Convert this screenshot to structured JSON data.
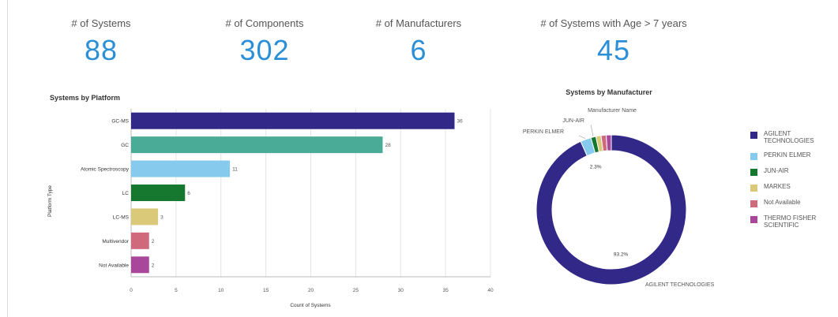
{
  "kpis": [
    {
      "label": "# of Systems",
      "value": "88"
    },
    {
      "label": "# of Components",
      "value": "302"
    },
    {
      "label": "# of Manufacturers",
      "value": "6"
    },
    {
      "label": "# of Systems with Age > 7 years",
      "value": "45"
    }
  ],
  "colors": {
    "kpi": "#2b8fd8"
  },
  "chart_data": [
    {
      "type": "bar",
      "orientation": "horizontal",
      "title": "Systems by Platform",
      "xlabel": "Count of Systems",
      "ylabel": "Platform Type",
      "categories": [
        "GC-MS",
        "GC",
        "Atomic Spectroscopy",
        "LC",
        "LC-MS",
        "Multivendor",
        "Not Available"
      ],
      "values": [
        36,
        28,
        11,
        6,
        3,
        2,
        2
      ],
      "colors": [
        "#312887",
        "#4aab96",
        "#86cbee",
        "#16772e",
        "#d9c979",
        "#cf6a7d",
        "#a9489a"
      ],
      "xlim": [
        0,
        40
      ],
      "xticks": [
        0,
        5,
        10,
        15,
        20,
        25,
        30,
        35,
        40
      ],
      "grid": true
    },
    {
      "type": "pie",
      "donut": true,
      "title": "Systems by  Manufacturer",
      "subtitle": "Manufacturer Name",
      "labels": [
        "AGILENT TECHNOLOGIES",
        "PERKIN ELMER",
        "JUN-AIR",
        "MARKES",
        "Not Available",
        "THERMO FISHER SCIENTIFIC"
      ],
      "percent": [
        93.2,
        2.3,
        1.1,
        1.1,
        1.1,
        1.1
      ],
      "colors": [
        "#312887",
        "#86cbee",
        "#16772e",
        "#d9c979",
        "#cf6a7d",
        "#a9489a"
      ],
      "data_labels": [
        "93.2%",
        "2.3%"
      ],
      "outer_labels": [
        "AGILENT TECHNOLOGIES",
        "PERKIN ELMER",
        "JUN-AIR"
      ],
      "legend": "right"
    }
  ]
}
